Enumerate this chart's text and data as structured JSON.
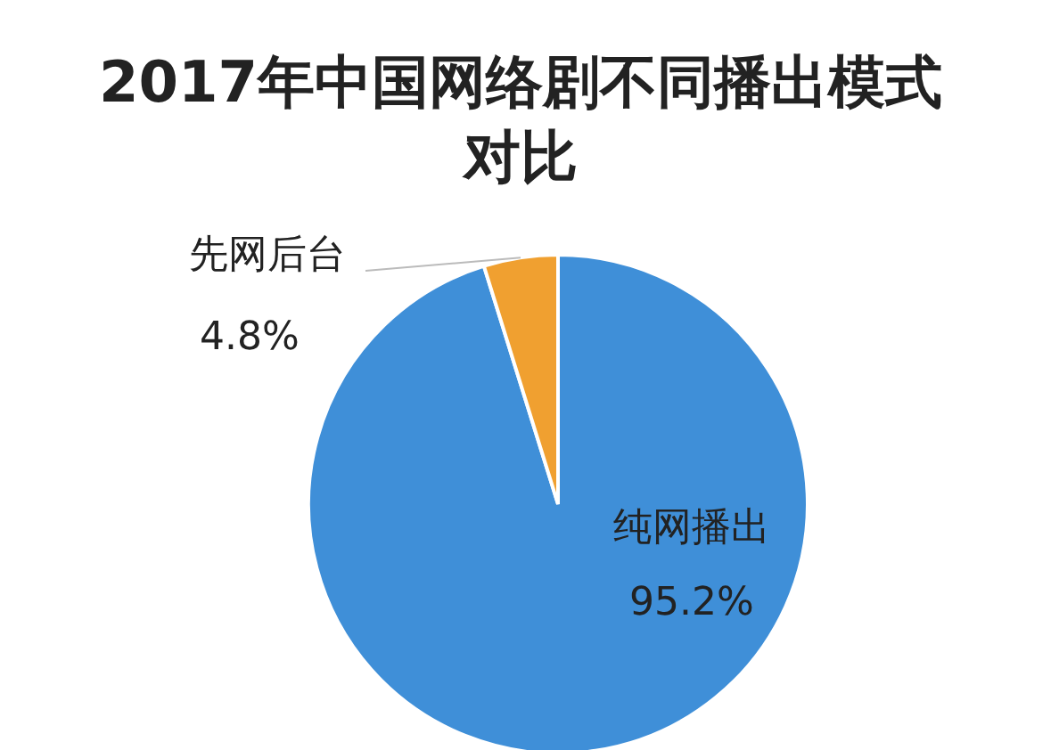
{
  "chart_data": {
    "type": "pie",
    "title": "2017年中国网络剧不同播出模式对比",
    "categories": [
      "纯网播出",
      "先网后台"
    ],
    "values": [
      95.2,
      4.8
    ],
    "value_labels": [
      "95.2%",
      "4.8%"
    ],
    "colors": [
      "#3f8fd8",
      "#f0a030"
    ]
  }
}
